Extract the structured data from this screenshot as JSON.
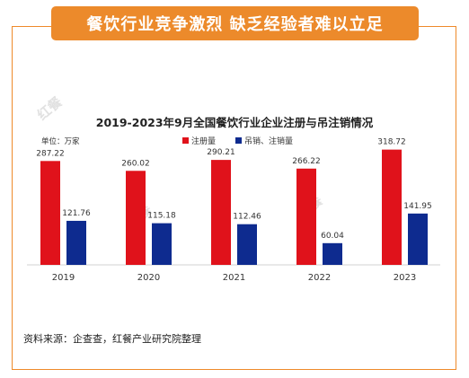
{
  "banner": {
    "title": "餐饮行业竞争激烈 缺乏经验者难以立足"
  },
  "source_note": "资料来源：企查查，红餐产业研究院整理",
  "colors": {
    "orange": "#ec8a2b",
    "series1": "#e0121b",
    "series2": "#0e2b8f"
  },
  "chart_data": {
    "type": "bar",
    "title": "2019-2023年9月全国餐饮行业企业注册与吊注销情况",
    "unit": "单位：万家",
    "categories": [
      "2019",
      "2020",
      "2021",
      "2022",
      "2023"
    ],
    "series": [
      {
        "name": "注册量",
        "values": [
          287.22,
          260.02,
          290.21,
          266.22,
          318.72
        ],
        "labels": [
          "287.22",
          "260.02",
          "290.21",
          "266.22",
          "318.72"
        ]
      },
      {
        "name": "吊销、注销量",
        "values": [
          121.76,
          115.18,
          112.46,
          60.04,
          141.95
        ],
        "labels": [
          "121.76",
          "115.18",
          "112.46",
          "60.04",
          "141.95"
        ]
      }
    ],
    "ylim": [
      0,
      360
    ],
    "grid": false,
    "legend": "top-center"
  }
}
